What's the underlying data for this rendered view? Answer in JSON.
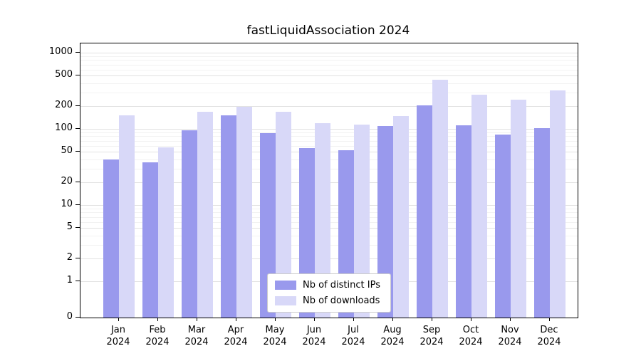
{
  "chart_data": {
    "type": "bar",
    "title": "fastLiquidAssociation 2024",
    "categories": [
      {
        "month": "Jan",
        "year": "2024"
      },
      {
        "month": "Feb",
        "year": "2024"
      },
      {
        "month": "Mar",
        "year": "2024"
      },
      {
        "month": "Apr",
        "year": "2024"
      },
      {
        "month": "May",
        "year": "2024"
      },
      {
        "month": "Jun",
        "year": "2024"
      },
      {
        "month": "Jul",
        "year": "2024"
      },
      {
        "month": "Aug",
        "year": "2024"
      },
      {
        "month": "Sep",
        "year": "2024"
      },
      {
        "month": "Oct",
        "year": "2024"
      },
      {
        "month": "Nov",
        "year": "2024"
      },
      {
        "month": "Dec",
        "year": "2024"
      }
    ],
    "series": [
      {
        "name": "Nb of distinct IPs",
        "color": "#9999ed",
        "values": [
          40,
          36,
          95,
          150,
          88,
          56,
          52,
          110,
          205,
          112,
          85,
          102
        ]
      },
      {
        "name": "Nb of downloads",
        "color": "#d8d8f8",
        "values": [
          150,
          57,
          168,
          195,
          168,
          118,
          114,
          148,
          440,
          280,
          240,
          320
        ]
      }
    ],
    "y_axis": {
      "scale": "log",
      "ticks": [
        0,
        1,
        2,
        5,
        10,
        20,
        50,
        100,
        200,
        500,
        1000
      ],
      "minor_ticks": [
        3,
        4,
        6,
        7,
        8,
        9,
        30,
        40,
        60,
        70,
        80,
        90,
        300,
        400,
        600,
        700,
        800,
        900
      ]
    },
    "x_axis": {
      "label": ""
    },
    "legend_position": "lower center",
    "grid": true
  }
}
